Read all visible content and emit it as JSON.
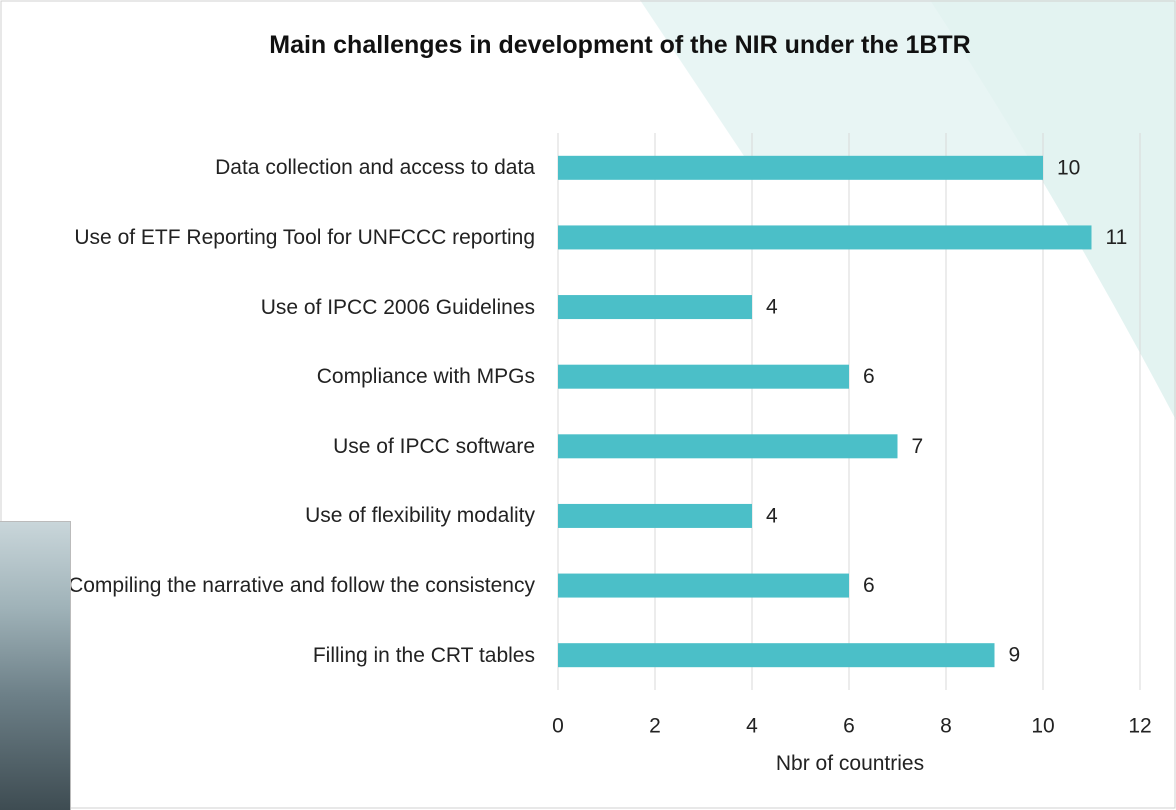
{
  "chart_data": {
    "type": "hbar",
    "title": "Main challenges in development of the NIR under the 1BTR",
    "categories": [
      "Data collection and access to data",
      "Use of ETF Reporting Tool for UNFCCC reporting",
      "Use of IPCC 2006 Guidelines",
      "Compliance with MPGs",
      "Use of IPCC software",
      "Use of flexibility modality",
      "Compiling the narrative and follow the consistency",
      "Filling in the CRT tables"
    ],
    "values": [
      10,
      11,
      4,
      6,
      7,
      4,
      6,
      9
    ],
    "color": "#4bbfc8",
    "xlim": [
      0,
      12
    ],
    "xticks": [
      0,
      2,
      4,
      6,
      8,
      10,
      12
    ],
    "xlabel": "Nbr of countries",
    "grid": true
  }
}
